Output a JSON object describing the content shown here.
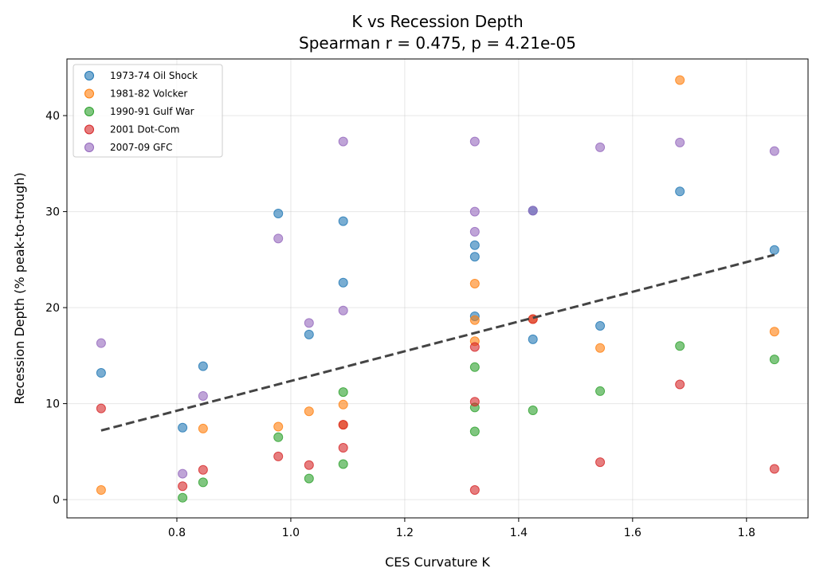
{
  "chart_data": {
    "type": "scatter",
    "title": "K vs Recession Depth",
    "subtitle": "Spearman r = 0.475, p = 4.21e-05",
    "xlabel": "CES Curvature K",
    "ylabel": "Recession Depth (% peak-to-trough)",
    "xlim": [
      0.607,
      1.908
    ],
    "ylim": [
      -1.9,
      45.9
    ],
    "xticks": [
      0.8,
      1.0,
      1.2,
      1.4,
      1.6,
      1.8
    ],
    "xtick_labels": [
      "0.8",
      "1.0",
      "1.2",
      "1.4",
      "1.6",
      "1.8"
    ],
    "yticks": [
      0,
      10,
      20,
      30,
      40
    ],
    "ytick_labels": [
      "0",
      "10",
      "20",
      "30",
      "40"
    ],
    "grid": true,
    "legend": "top-left",
    "series": [
      {
        "name": "1973-74 Oil Shock",
        "color": "#1f77b4",
        "points": [
          [
            0.667,
            13.2
          ],
          [
            0.81,
            7.5
          ],
          [
            0.846,
            13.9
          ],
          [
            0.978,
            29.8
          ],
          [
            1.032,
            17.2
          ],
          [
            1.092,
            29.0
          ],
          [
            1.092,
            22.6
          ],
          [
            1.323,
            26.5
          ],
          [
            1.323,
            25.3
          ],
          [
            1.323,
            19.1
          ],
          [
            1.425,
            30.1
          ],
          [
            1.425,
            16.7
          ],
          [
            1.543,
            18.1
          ],
          [
            1.683,
            32.1
          ],
          [
            1.849,
            26.0
          ]
        ]
      },
      {
        "name": "1981-82 Volcker",
        "color": "#ff7f0e",
        "points": [
          [
            0.667,
            1.0
          ],
          [
            0.846,
            7.4
          ],
          [
            0.978,
            7.6
          ],
          [
            1.032,
            9.2
          ],
          [
            1.092,
            9.9
          ],
          [
            1.092,
            7.8
          ],
          [
            1.323,
            22.5
          ],
          [
            1.323,
            18.7
          ],
          [
            1.323,
            16.5
          ],
          [
            1.425,
            18.8
          ],
          [
            1.543,
            15.8
          ],
          [
            1.683,
            43.7
          ],
          [
            1.849,
            17.5
          ]
        ]
      },
      {
        "name": "1990-91 Gulf War",
        "color": "#2ca02c",
        "points": [
          [
            0.81,
            0.2
          ],
          [
            0.846,
            1.8
          ],
          [
            0.978,
            6.5
          ],
          [
            1.032,
            2.2
          ],
          [
            1.092,
            11.2
          ],
          [
            1.092,
            3.7
          ],
          [
            1.323,
            13.8
          ],
          [
            1.323,
            9.6
          ],
          [
            1.323,
            7.1
          ],
          [
            1.425,
            9.3
          ],
          [
            1.543,
            11.3
          ],
          [
            1.683,
            16.0
          ],
          [
            1.849,
            14.6
          ]
        ]
      },
      {
        "name": "2001 Dot-Com",
        "color": "#d62728",
        "points": [
          [
            0.667,
            9.5
          ],
          [
            0.81,
            1.4
          ],
          [
            0.846,
            3.1
          ],
          [
            0.978,
            4.5
          ],
          [
            1.032,
            3.6
          ],
          [
            1.092,
            7.8
          ],
          [
            1.092,
            5.4
          ],
          [
            1.323,
            15.9
          ],
          [
            1.323,
            10.2
          ],
          [
            1.323,
            1.0
          ],
          [
            1.425,
            18.8
          ],
          [
            1.543,
            3.9
          ],
          [
            1.683,
            12.0
          ],
          [
            1.849,
            3.2
          ]
        ]
      },
      {
        "name": "2007-09 GFC",
        "color": "#9467bd",
        "points": [
          [
            0.667,
            16.3
          ],
          [
            0.81,
            2.7
          ],
          [
            0.846,
            10.8
          ],
          [
            0.978,
            27.2
          ],
          [
            1.032,
            18.4
          ],
          [
            1.092,
            37.3
          ],
          [
            1.092,
            19.7
          ],
          [
            1.323,
            37.3
          ],
          [
            1.323,
            30.0
          ],
          [
            1.323,
            27.9
          ],
          [
            1.425,
            30.1
          ],
          [
            1.543,
            36.7
          ],
          [
            1.683,
            37.2
          ],
          [
            1.849,
            36.3
          ]
        ]
      }
    ],
    "trend_line": {
      "color": "#444444",
      "style": "dashed",
      "points": [
        [
          0.667,
          7.2
        ],
        [
          1.849,
          25.5
        ]
      ]
    }
  }
}
